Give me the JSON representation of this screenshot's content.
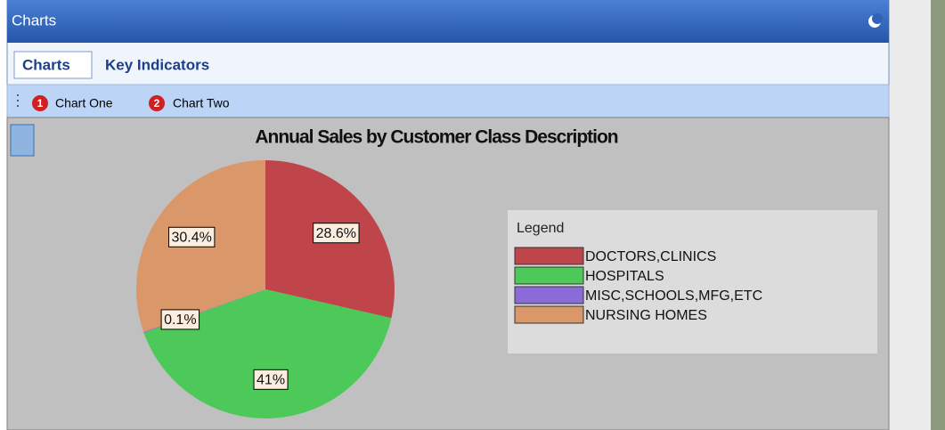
{
  "window": {
    "title": "Charts"
  },
  "tabs": [
    "Charts",
    "Key Indicators"
  ],
  "toolbar": {
    "buttons": [
      {
        "badge": "1",
        "label": "Chart One"
      },
      {
        "badge": "2",
        "label": "Chart Two"
      }
    ]
  },
  "chart_data": {
    "type": "pie",
    "title": "Annual Sales by Customer Class Description",
    "legend_title": "Legend",
    "categories": [
      "DOCTORS,CLINICS",
      "HOSPITALS",
      "MISC,SCHOOLS,MFG,ETC",
      "NURSING HOMES"
    ],
    "values": [
      28.6,
      41,
      0.1,
      30.4
    ],
    "value_labels": [
      "28.6%",
      "41%",
      "0.1%",
      "30.4%"
    ],
    "colors": [
      "#c0454a",
      "#4dc95a",
      "#8a6bd8",
      "#d9976a"
    ]
  }
}
